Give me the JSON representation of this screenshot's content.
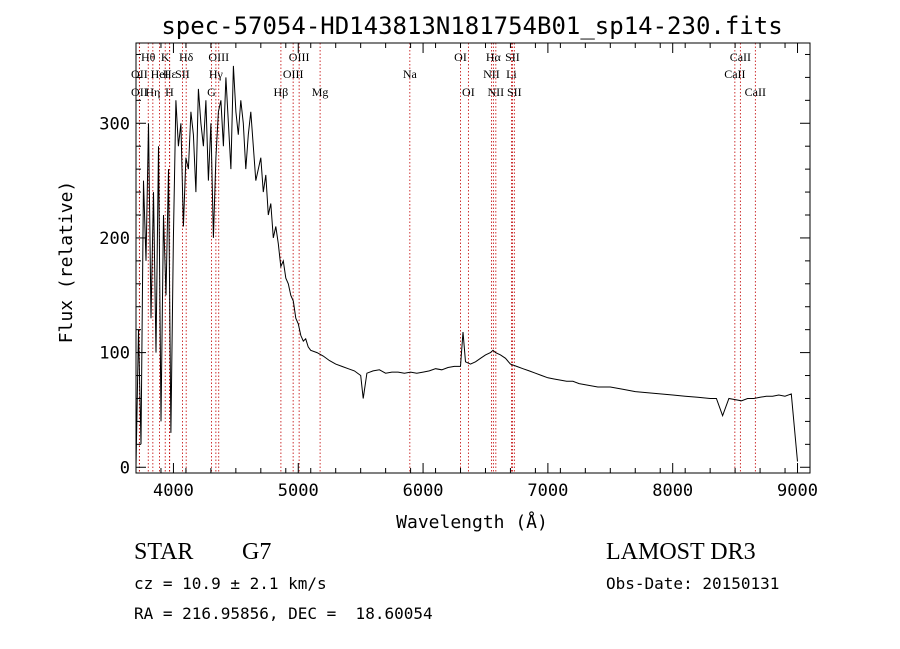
{
  "chart_data": {
    "type": "line",
    "title": "spec-57054-HD143813N181754B01_sp14-230.fits",
    "xlabel": "Wavelength (Å)",
    "ylabel": "Flux (relative)",
    "xlim": [
      3700,
      9100
    ],
    "ylim": [
      -5,
      370
    ],
    "xticks": [
      4000,
      5000,
      6000,
      7000,
      8000,
      9000
    ],
    "yticks": [
      0,
      100,
      200,
      300
    ],
    "grid": false,
    "series": [
      {
        "x": [
          3700,
          3720,
          3740,
          3760,
          3780,
          3800,
          3820,
          3840,
          3860,
          3880,
          3900,
          3920,
          3940,
          3960,
          3980,
          4000,
          4020,
          4040,
          4060,
          4080,
          4100,
          4120,
          4140,
          4160,
          4180,
          4200,
          4220,
          4240,
          4260,
          4280,
          4300,
          4320,
          4340,
          4360,
          4380,
          4400,
          4420,
          4440,
          4460,
          4480,
          4500,
          4520,
          4540,
          4560,
          4580,
          4600,
          4620,
          4640,
          4660,
          4680,
          4700,
          4720,
          4740,
          4760,
          4780,
          4800,
          4820,
          4840,
          4860,
          4880,
          4900,
          4920,
          4940,
          4960,
          4980,
          5000,
          5020,
          5040,
          5060,
          5080,
          5100,
          5150,
          5200,
          5250,
          5300,
          5350,
          5400,
          5450,
          5500,
          5520,
          5550,
          5600,
          5650,
          5700,
          5750,
          5800,
          5850,
          5900,
          5950,
          6000,
          6050,
          6100,
          6150,
          6200,
          6250,
          6300,
          6320,
          6340,
          6380,
          6420,
          6460,
          6500,
          6540,
          6560,
          6580,
          6620,
          6660,
          6700,
          6750,
          6800,
          6850,
          6900,
          6950,
          7000,
          7050,
          7100,
          7150,
          7200,
          7250,
          7300,
          7400,
          7500,
          7600,
          7700,
          7800,
          7900,
          8000,
          8100,
          8200,
          8300,
          8350,
          8400,
          8450,
          8500,
          8550,
          8600,
          8650,
          8700,
          8750,
          8800,
          8850,
          8900,
          8950,
          9000
        ],
        "y": [
          0,
          120,
          20,
          250,
          180,
          300,
          130,
          240,
          100,
          280,
          40,
          220,
          150,
          260,
          30,
          200,
          320,
          280,
          300,
          210,
          270,
          260,
          310,
          290,
          240,
          330,
          300,
          280,
          320,
          250,
          300,
          200,
          270,
          310,
          320,
          280,
          340,
          300,
          260,
          350,
          310,
          290,
          320,
          300,
          260,
          290,
          310,
          280,
          250,
          260,
          270,
          240,
          255,
          220,
          230,
          200,
          210,
          195,
          175,
          180,
          165,
          160,
          150,
          145,
          130,
          125,
          115,
          110,
          112,
          105,
          102,
          100,
          97,
          93,
          90,
          88,
          86,
          84,
          80,
          60,
          82,
          84,
          85,
          82,
          83,
          83,
          82,
          83,
          82,
          83,
          84,
          86,
          85,
          87,
          88,
          88,
          118,
          92,
          90,
          92,
          95,
          98,
          100,
          102,
          100,
          98,
          95,
          90,
          88,
          86,
          84,
          82,
          80,
          78,
          77,
          76,
          75,
          75,
          73,
          72,
          70,
          70,
          68,
          66,
          65,
          64,
          63,
          62,
          61,
          60,
          60,
          45,
          60,
          59,
          58,
          60,
          60,
          61,
          62,
          62,
          63,
          62,
          64,
          5
        ]
      }
    ],
    "lines": [
      {
        "name": "Hθ",
        "x": 3798,
        "row": 0
      },
      {
        "name": "OII",
        "x": 3727,
        "row": 1
      },
      {
        "name": "OII",
        "x": 3727,
        "row": 2
      },
      {
        "name": "K",
        "x": 3934,
        "row": 0
      },
      {
        "name": "Hε",
        "x": 3970,
        "row": 1
      },
      {
        "name": "HeI",
        "x": 3889,
        "row": 1
      },
      {
        "name": "Hη",
        "x": 3835,
        "row": 2
      },
      {
        "name": "H",
        "x": 3968,
        "row": 2
      },
      {
        "name": "Hδ",
        "x": 4102,
        "row": 0
      },
      {
        "name": "SII",
        "x": 4072,
        "row": 1
      },
      {
        "name": "OIII",
        "x": 4363,
        "row": 0
      },
      {
        "name": "Hγ",
        "x": 4340,
        "row": 1
      },
      {
        "name": "G",
        "x": 4305,
        "row": 2
      },
      {
        "name": "Hβ",
        "x": 4861,
        "row": 2
      },
      {
        "name": "OIII",
        "x": 5007,
        "row": 0
      },
      {
        "name": "OIII",
        "x": 4959,
        "row": 1
      },
      {
        "name": "Mg",
        "x": 5175,
        "row": 2
      },
      {
        "name": "Na",
        "x": 5894,
        "row": 1
      },
      {
        "name": "OI",
        "x": 6300,
        "row": 0
      },
      {
        "name": "OI",
        "x": 6363,
        "row": 2
      },
      {
        "name": "Hα",
        "x": 6563,
        "row": 0
      },
      {
        "name": "NII",
        "x": 6548,
        "row": 1
      },
      {
        "name": "NII",
        "x": 6583,
        "row": 2
      },
      {
        "name": "SII",
        "x": 6716,
        "row": 0
      },
      {
        "name": "Li",
        "x": 6708,
        "row": 1
      },
      {
        "name": "SII",
        "x": 6731,
        "row": 2
      },
      {
        "name": "CaII",
        "x": 8542,
        "row": 0
      },
      {
        "name": "CaII",
        "x": 8498,
        "row": 1
      },
      {
        "name": "CaII",
        "x": 8662,
        "row": 2
      }
    ]
  },
  "info": {
    "object_class": "STAR",
    "subclass": "G7",
    "survey": "LAMOST DR3",
    "redshift": "cz = 10.9 ± 2.1 km/s",
    "obs_date": "Obs-Date: 20150131",
    "coords": "RA = 216.95856, DEC =  18.60054"
  }
}
